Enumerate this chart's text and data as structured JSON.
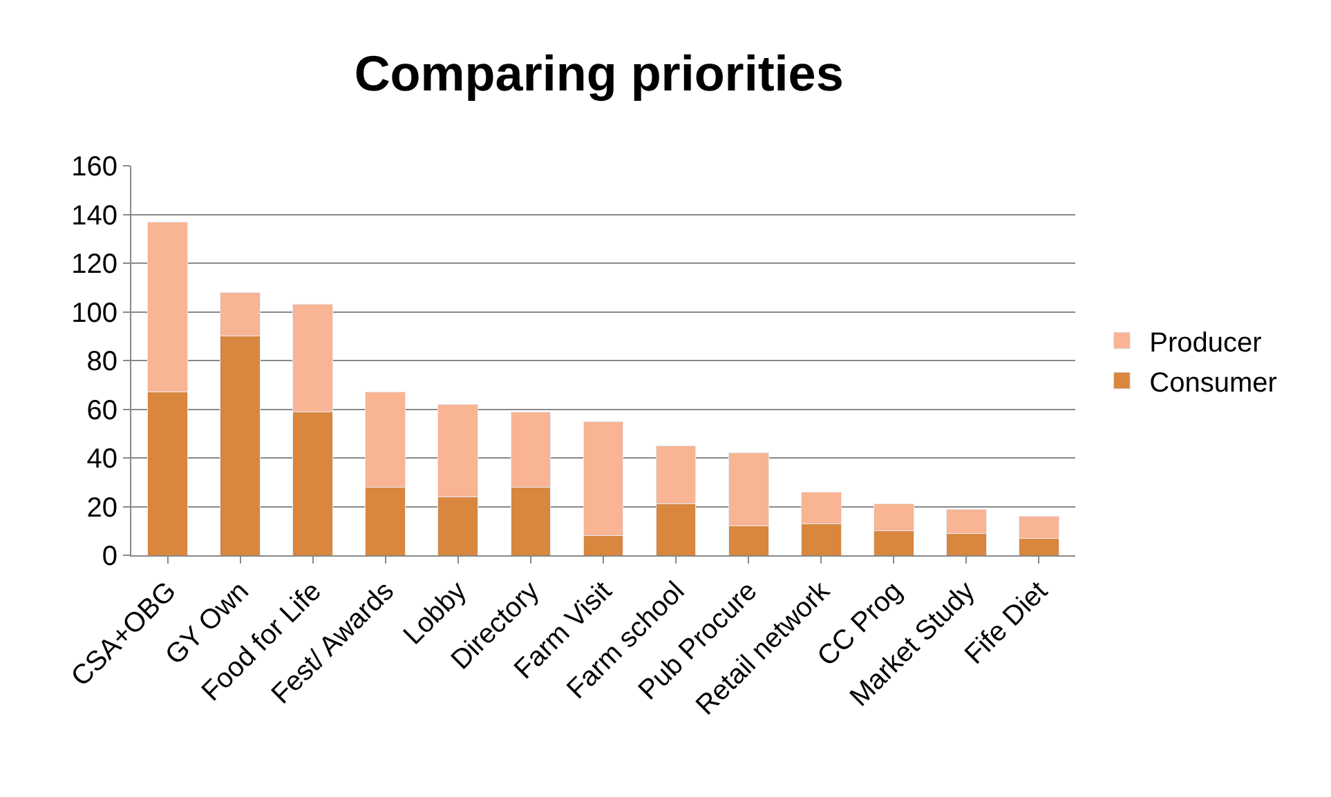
{
  "chart_data": {
    "type": "bar",
    "title": "Comparing priorities",
    "stacked": true,
    "categories": [
      "CSA+OBG",
      "GY Own",
      "Food for Life",
      "Fest/ Awards",
      "Lobby",
      "Directory",
      "Farm Visit",
      "Farm school",
      "Pub Procure",
      "Retail network",
      "CC Prog",
      "Market Study",
      "Fife Diet"
    ],
    "series": [
      {
        "name": "Consumer",
        "color": "#d9863e",
        "values": [
          67,
          90,
          59,
          28,
          24,
          28,
          8,
          21,
          12,
          13,
          10,
          9,
          7
        ]
      },
      {
        "name": "Producer",
        "color": "#f8b493",
        "values": [
          70,
          18,
          44,
          39,
          38,
          31,
          47,
          24,
          30,
          13,
          11,
          10,
          9
        ]
      }
    ],
    "ylim": [
      0,
      160
    ],
    "yticks": [
      0,
      20,
      40,
      60,
      80,
      100,
      120,
      140,
      160
    ],
    "grid": "y",
    "legend": "right"
  }
}
